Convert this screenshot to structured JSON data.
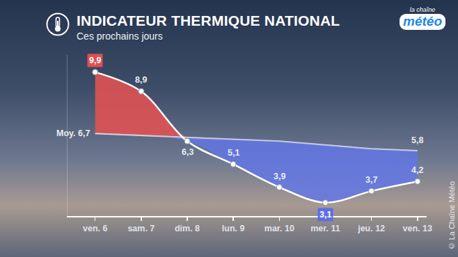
{
  "chart_data": {
    "type": "line",
    "title": "INDICATEUR THERMIQUE NATIONAL",
    "subtitle": "Ces prochains jours",
    "logo": [
      "la chaîne",
      "météo"
    ],
    "source": "© La Chaîne Météo",
    "categories": [
      "ven. 6",
      "sam. 7",
      "dim. 8",
      "lun. 9",
      "mar. 10",
      "mer. 11",
      "jeu. 12",
      "ven. 13"
    ],
    "values": [
      9.9,
      8.9,
      6.3,
      5.1,
      3.9,
      3.1,
      3.7,
      4.2
    ],
    "value_labels": [
      "9,9",
      "8,9",
      "6,3",
      "5,1",
      "3,9",
      "3,1",
      "3,7",
      "4,2"
    ],
    "color": "#ffffff",
    "normals": {
      "name": "Moy.",
      "values": [
        6.7,
        6.6,
        6.5,
        6.4,
        6.3,
        6.1,
        5.9,
        5.8
      ],
      "value_labels": [
        "6,7",
        null,
        null,
        null,
        null,
        null,
        null,
        "5,8"
      ]
    },
    "ylim": [
      2.4,
      10.8
    ],
    "tick_labels": "x",
    "data_labels": true,
    "grid": false
  }
}
